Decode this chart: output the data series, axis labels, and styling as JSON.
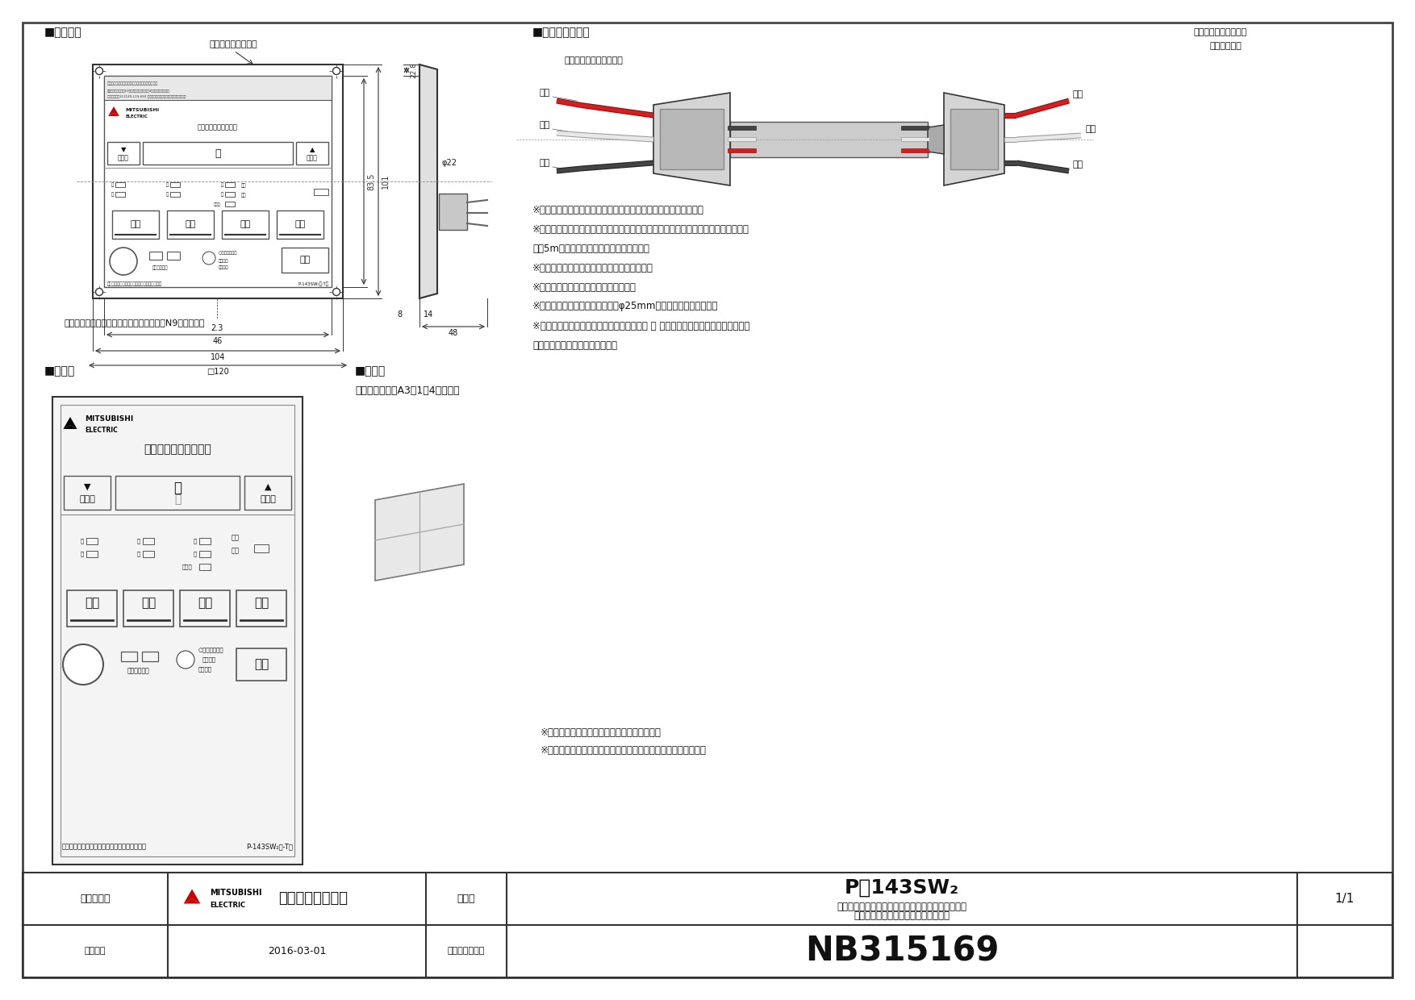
{
  "bg_color": "#ffffff",
  "line_color": "#333333",
  "light_line": "#888888",
  "title_section": "■外形寸法",
  "title_display": "■表示部",
  "title_connector": "■コネクタ接続部",
  "title_accessories": "■付属品",
  "accessories_text": "・添付説明書（A3　1枚4つ折り）",
  "label_tokuteihoshu": "特定保守製品ラベル",
  "label_control_switch_side": "コントロールスイッチ側",
  "label_control_switch_right_1": "コントロールスイッチ",
  "label_control_switch_right_2": "接続コード側",
  "label_aka_left": "アカ",
  "label_shiro_left": "シロ",
  "label_kuro_left": "クロ",
  "label_aka_right": "アカ",
  "label_shiro_right": "シロ",
  "label_kuro_right": "クロ",
  "notes": [
    "※付属の取付説明書をお読みいただき、正しく取付けてください。",
    "※コントロールスイッチと本体とを接続するためのコントロールスイッチ接続コード",
    "　（5m）は、本体側に同梱されています。",
    "※取付ねじはお客さまにて手配してください。",
    "※浴室の壁には取付けないでください。",
    "※壁に直接浸付ける場合は、壁にφ25mmの穴を開けてください。",
    "※スイッチボックスに取付ける場合はＪＩＳ Ｃ ８３４０に適合した２個用スイッチ",
    "　ボックスに取付けてください。"
  ],
  "notes2": [
    "※適合機種：カタログや本体の納入仕様書を確認してください。",
    "※仕様は場合により変更することがあります。"
  ],
  "color_label": "コントロールスイッチ枠色調：マンセル　N9（近似色）",
  "dim_83_5": "83.5",
  "dim_101": "101",
  "dim_22_8": "22.8",
  "dim_phi22": "φ22",
  "dim_2_3": "2.3",
  "dim_46": "46",
  "dim_104": "104",
  "dim_c120": "□120",
  "dim_14": "14",
  "dim_8": "8",
  "dim_48": "48",
  "company": "三菱電機株式会社",
  "drawing_type": "第３角図法",
  "form_name": "形　名",
  "form_name_line1": "２４時間換気機能付バス乾燥・暖房・換気システム",
  "form_name_line2": "コントロールスイッチ（標準タイプ）",
  "model_top": "P－143SW₂",
  "date_label": "作成日付",
  "date_value": "2016-03-01",
  "ref_label": "整　理　番　号",
  "ref_number": "NB315169",
  "page": "1/1",
  "timer_label": "タイマー（残り時間）",
  "btn_modoru": "もどる",
  "btn_susumu": "すすむ",
  "btn_kanki": "換気",
  "btn_danbo": "暖房",
  "btn_kanso": "乾燥",
  "btn_suzukaze": "涼風",
  "btn_teishi": "停止",
  "sub_text1": "２４時間換気の停止は電源ボタンを３秒押し。",
  "sub_text2": "P-143SW₂（-T）"
}
